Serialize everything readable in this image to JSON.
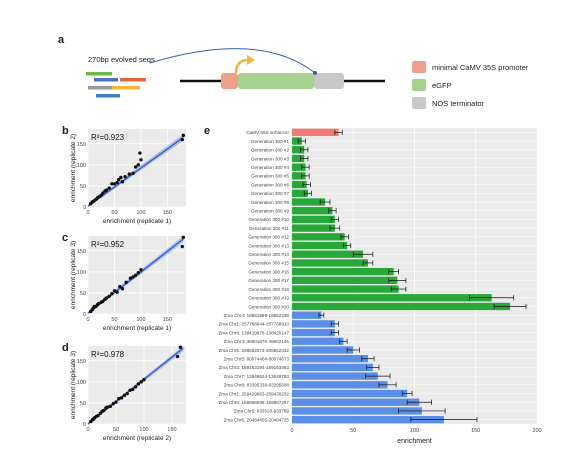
{
  "panels": {
    "a": "a",
    "b": "b",
    "c": "c",
    "d": "d",
    "e": "e"
  },
  "schematic": {
    "seqs_label": "270bp evolved seqs",
    "legend": [
      {
        "label": "minimal  CaMV 35S promoter",
        "color": "#f0a08a"
      },
      {
        "label": "eGFP",
        "color": "#a6d18e"
      },
      {
        "label": "NOS terminator",
        "color": "#c8c8c8"
      }
    ],
    "fragment_colors": [
      "#6dbb45",
      "#4f6fc1",
      "#e06a3b",
      "#9a9a9a",
      "#f4b73c",
      "#3d7fc8"
    ]
  },
  "chart_data": [
    {
      "type": "scatter",
      "panel": "b",
      "annotation": "R²=0.923",
      "xlabel": "enrichment (replicate 1)",
      "ylabel": "enrichment (replicate 2)",
      "xticks": [
        0,
        50,
        100,
        150
      ],
      "yticks": [
        0,
        50,
        100,
        150
      ],
      "xlim": [
        0,
        185
      ],
      "ylim": [
        0,
        185
      ],
      "points": [
        [
          5,
          8
        ],
        [
          8,
          12
        ],
        [
          10,
          13
        ],
        [
          12,
          15
        ],
        [
          15,
          18
        ],
        [
          18,
          22
        ],
        [
          22,
          25
        ],
        [
          25,
          28
        ],
        [
          28,
          33
        ],
        [
          32,
          38
        ],
        [
          35,
          40
        ],
        [
          40,
          45
        ],
        [
          45,
          55
        ],
        [
          50,
          55
        ],
        [
          55,
          58
        ],
        [
          58,
          65
        ],
        [
          62,
          70
        ],
        [
          65,
          60
        ],
        [
          70,
          72
        ],
        [
          78,
          78
        ],
        [
          85,
          80
        ],
        [
          90,
          95
        ],
        [
          95,
          100
        ],
        [
          98,
          128
        ],
        [
          100,
          112
        ],
        [
          178,
          160
        ],
        [
          180,
          170
        ]
      ],
      "fit": [
        [
          0,
          2
        ],
        [
          180,
          165
        ]
      ]
    },
    {
      "type": "scatter",
      "panel": "c",
      "annotation": "R²=0.952",
      "xlabel": "enrichment (replicate 1)",
      "ylabel": "enrichment (replicate 3)",
      "xticks": [
        0,
        50,
        100,
        150
      ],
      "yticks": [
        0,
        50,
        100,
        150
      ],
      "xlim": [
        0,
        185
      ],
      "ylim": [
        0,
        185
      ],
      "points": [
        [
          5,
          6
        ],
        [
          8,
          10
        ],
        [
          10,
          14
        ],
        [
          12,
          18
        ],
        [
          15,
          18
        ],
        [
          18,
          22
        ],
        [
          20,
          25
        ],
        [
          25,
          28
        ],
        [
          28,
          30
        ],
        [
          32,
          35
        ],
        [
          35,
          38
        ],
        [
          40,
          42
        ],
        [
          45,
          48
        ],
        [
          50,
          55
        ],
        [
          55,
          52
        ],
        [
          60,
          65
        ],
        [
          65,
          60
        ],
        [
          72,
          75
        ],
        [
          80,
          85
        ],
        [
          85,
          88
        ],
        [
          90,
          92
        ],
        [
          95,
          98
        ],
        [
          100,
          105
        ],
        [
          178,
          160
        ],
        [
          180,
          182
        ]
      ],
      "fit": [
        [
          0,
          2
        ],
        [
          180,
          178
        ]
      ]
    },
    {
      "type": "scatter",
      "panel": "d",
      "annotation": "R²=0.978",
      "xlabel": "enrichment (replicate 2)",
      "ylabel": "enrichment (replicate 3)",
      "xticks": [
        0,
        50,
        100,
        150
      ],
      "yticks": [
        0,
        50,
        100,
        150
      ],
      "xlim": [
        0,
        175
      ],
      "ylim": [
        0,
        185
      ],
      "points": [
        [
          5,
          6
        ],
        [
          8,
          10
        ],
        [
          10,
          12
        ],
        [
          12,
          15
        ],
        [
          15,
          18
        ],
        [
          18,
          20
        ],
        [
          22,
          25
        ],
        [
          25,
          30
        ],
        [
          28,
          32
        ],
        [
          32,
          38
        ],
        [
          35,
          40
        ],
        [
          40,
          42
        ],
        [
          45,
          48
        ],
        [
          50,
          52
        ],
        [
          55,
          60
        ],
        [
          60,
          62
        ],
        [
          65,
          68
        ],
        [
          70,
          72
        ],
        [
          75,
          80
        ],
        [
          80,
          82
        ],
        [
          85,
          88
        ],
        [
          90,
          95
        ],
        [
          95,
          100
        ],
        [
          100,
          105
        ],
        [
          160,
          160
        ],
        [
          165,
          182
        ]
      ],
      "fit": [
        [
          0,
          0
        ],
        [
          170,
          180
        ]
      ]
    },
    {
      "type": "bar",
      "orientation": "horizontal",
      "panel": "e",
      "xlabel": "enrichment",
      "xticks": [
        0,
        50,
        100,
        150,
        200
      ],
      "xlim": [
        0,
        200
      ],
      "colors": {
        "control": "#ef7b73",
        "evolved": "#27a838",
        "genomic": "#5b8ee6"
      },
      "categories": [
        "CaMV 35S enhancer",
        "Generation 300 #1",
        "Generation 300 #2",
        "Generation 300 #3",
        "Generation 300 #4",
        "Generation 300 #5",
        "Generation 300 #6",
        "Generation 300 #7",
        "Generation 300 #8",
        "Generation 300 #9",
        "Generation 300 #10",
        "Generation 300 #11",
        "Generation 300 #12",
        "Generation 300 #13",
        "Generation 300 #14",
        "Generation 300 #15",
        "Generation 300 #16",
        "Generation 300 #17",
        "Generation 300 #18",
        "Generation 300 #19",
        "Generation 300 #20",
        "Zma Chr4: 18561989-18562238",
        "Zma Chr1: 257768644-257768913",
        "Zma Chr8: 138419878-138420147",
        "Zma Chr3: 48601876-48602145",
        "Zma Chr5: 208552073-208552342",
        "Zma Chr5: 80074404-80074673",
        "Zma Chr3: 189163194-189163463",
        "Zma Chr7: 13649524-13649793",
        "Zma Chr9: 83395339-83395608",
        "Zma Chr1: 259429963-259430232",
        "Zma Chr6: 169868698-169867267",
        "Zma Chr5: 933520-933789",
        "Zma Chr6: 20484456-20484725"
      ],
      "groups": [
        "control",
        "evolved",
        "evolved",
        "evolved",
        "evolved",
        "evolved",
        "evolved",
        "evolved",
        "evolved",
        "evolved",
        "evolved",
        "evolved",
        "evolved",
        "evolved",
        "evolved",
        "evolved",
        "evolved",
        "evolved",
        "evolved",
        "evolved",
        "evolved",
        "genomic",
        "genomic",
        "genomic",
        "genomic",
        "genomic",
        "genomic",
        "genomic",
        "genomic",
        "genomic",
        "genomic",
        "genomic",
        "genomic",
        "genomic"
      ],
      "values": [
        38,
        8,
        10,
        10,
        11,
        11,
        12,
        13,
        27,
        33,
        35,
        35,
        43,
        45,
        58,
        62,
        83,
        86,
        87,
        163,
        178,
        24,
        35,
        35,
        42,
        50,
        62,
        66,
        70,
        78,
        94,
        104,
        106,
        124
      ],
      "errors": [
        3,
        3,
        3,
        3,
        3,
        3,
        3,
        3,
        4,
        3,
        3,
        4,
        3,
        3,
        8,
        4,
        4,
        7,
        6,
        18,
        13,
        2,
        3,
        3,
        3,
        5,
        5,
        5,
        10,
        7,
        4,
        10,
        19,
        27
      ]
    }
  ]
}
